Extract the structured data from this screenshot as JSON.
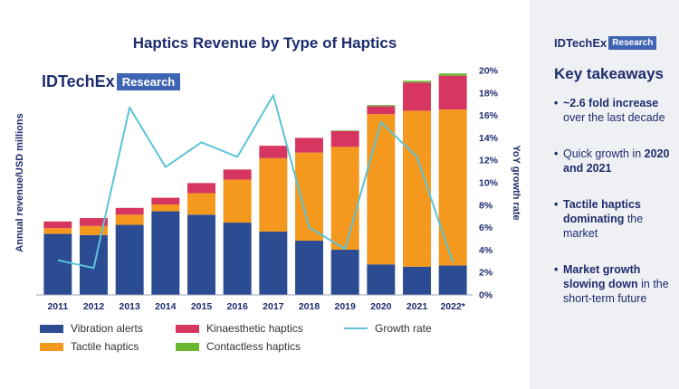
{
  "title": "Haptics Revenue by Type of Haptics",
  "logo": {
    "brand": "IDTechEx",
    "tag": "Research"
  },
  "sidebar": {
    "logo": {
      "brand": "IDTechEx",
      "tag": "Research"
    },
    "heading": "Key takeaways",
    "items": [
      {
        "bold": "~2.6 fold increase",
        "rest": " over the last decade"
      },
      {
        "pre": "Quick growth in ",
        "bold": "2020 and 2021"
      },
      {
        "bold": "Tactile haptics dominating",
        "rest": " the market"
      },
      {
        "bold": "Market growth slowing down",
        "rest": " in the short-term future"
      }
    ]
  },
  "colors": {
    "vibration": "#2b4b93",
    "tactile": "#f5991e",
    "kinaesthetic": "#d6365f",
    "contactless": "#6ab830",
    "growth": "#5bc3d9",
    "axis_text": "#1e2d6e"
  },
  "chart_data": {
    "type": "bar",
    "stacked": true,
    "categories": [
      "2011",
      "2012",
      "2013",
      "2014",
      "2015",
      "2016",
      "2017",
      "2018",
      "2019",
      "2020",
      "2021",
      "2022*"
    ],
    "ylabel": "Annual revenue/USD millions",
    "y2label": "YoY growth rate",
    "y2lim": [
      0,
      20
    ],
    "y2ticks": [
      "0%",
      "2%",
      "4%",
      "6%",
      "8%",
      "10%",
      "12%",
      "14%",
      "16%",
      "18%",
      "20%"
    ],
    "grid": false,
    "legend_position": "bottom",
    "series": [
      {
        "name": "Vibration alerts",
        "key": "vibration",
        "values": [
          5.4,
          5.3,
          6.2,
          7.4,
          7.1,
          6.4,
          5.6,
          4.8,
          4.0,
          2.7,
          2.5,
          2.6
        ]
      },
      {
        "name": "Tactile haptics",
        "key": "tactile",
        "values": [
          0.5,
          0.8,
          0.9,
          0.6,
          1.9,
          3.8,
          6.5,
          7.8,
          9.1,
          13.3,
          13.8,
          13.8
        ]
      },
      {
        "name": "Kinaesthetic haptics",
        "key": "kinaesthetic",
        "values": [
          0.6,
          0.7,
          0.6,
          0.6,
          0.9,
          0.9,
          1.1,
          1.3,
          1.4,
          0.7,
          2.5,
          3.0
        ]
      },
      {
        "name": "Contactless haptics",
        "key": "contactless",
        "values": [
          0,
          0,
          0,
          0,
          0,
          0,
          0,
          0,
          0.05,
          0.1,
          0.15,
          0.2
        ]
      }
    ],
    "growth_rate": {
      "name": "Growth rate",
      "key": "growth",
      "values": [
        3.1,
        2.4,
        16.7,
        11.4,
        13.6,
        12.3,
        17.8,
        6.0,
        4.1,
        15.4,
        12.3,
        2.9
      ]
    }
  }
}
